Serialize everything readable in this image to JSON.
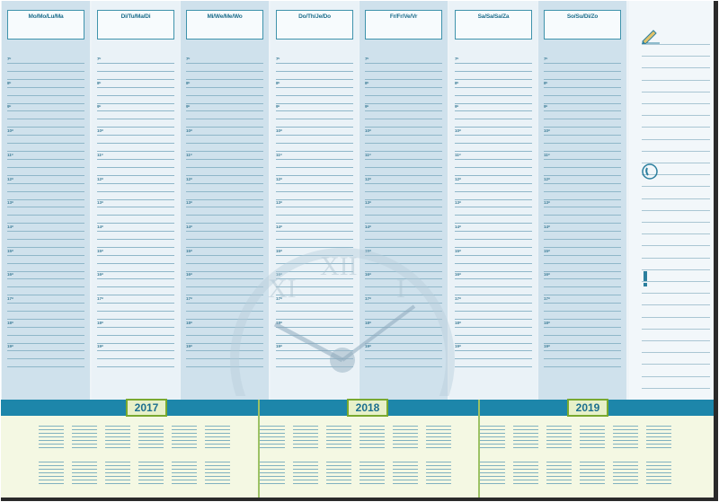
{
  "days": [
    "Mo/Mo/Lu/Ma",
    "Di/Tu/Ma/Di",
    "Mi/We/Me/Wo",
    "Do/Th/Je/Do",
    "Fr/Fr/Ve/Vr",
    "Sa/Sa/Sa/Za",
    "So/Su/Di/Zo"
  ],
  "hours": [
    "7ᵘ",
    "8ᵘ",
    "9ᵘ",
    "10ᵘ",
    "11ᵘ",
    "12ᵘ",
    "13ᵘ",
    "14ᵘ",
    "15ᵘ",
    "16ᵘ",
    "17ᵘ",
    "18ᵘ",
    "19ᵘ"
  ],
  "years": [
    "2017",
    "2018",
    "2019"
  ],
  "icons": [
    "pencil-icon",
    "phone-icon",
    "exclamation-icon"
  ],
  "colors": {
    "accent": "#1d86aa",
    "column_dark": "#cfe1ec",
    "column_light": "#eaf2f7",
    "year_frame": "#79a92f"
  }
}
